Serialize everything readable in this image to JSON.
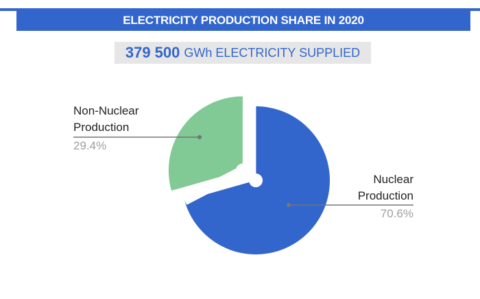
{
  "header": {
    "title": "ELECTRICITY PRODUCTION SHARE IN 2020"
  },
  "supply": {
    "value": "379 500",
    "label": "GWh ELECTRICITY SUPPLIED"
  },
  "colors": {
    "accent": "#3366CC",
    "nuclear": "#3366CC",
    "non_nuclear": "#81C995",
    "box_bg": "#E6E6E6",
    "leader_line": "#757575",
    "percent_text": "#9E9E9E"
  },
  "labels": {
    "non_nuclear": {
      "line1": "Non-Nuclear",
      "line2": "Production",
      "percent": "29.4%"
    },
    "nuclear": {
      "line1": "Nuclear",
      "line2": "Production",
      "percent": "70.6%"
    }
  },
  "chart_data": {
    "type": "pie",
    "title": "ELECTRICITY PRODUCTION SHARE IN 2020",
    "subtitle": "379 500 GWh ELECTRICITY SUPPLIED",
    "categories": [
      "Nuclear Production",
      "Non-Nuclear Production"
    ],
    "values": [
      70.6,
      29.4
    ],
    "unit": "%",
    "colors": [
      "#3366CC",
      "#81C995"
    ],
    "exploded": true,
    "legend": "none (callout labels)",
    "total": 379500,
    "total_unit": "GWh"
  }
}
